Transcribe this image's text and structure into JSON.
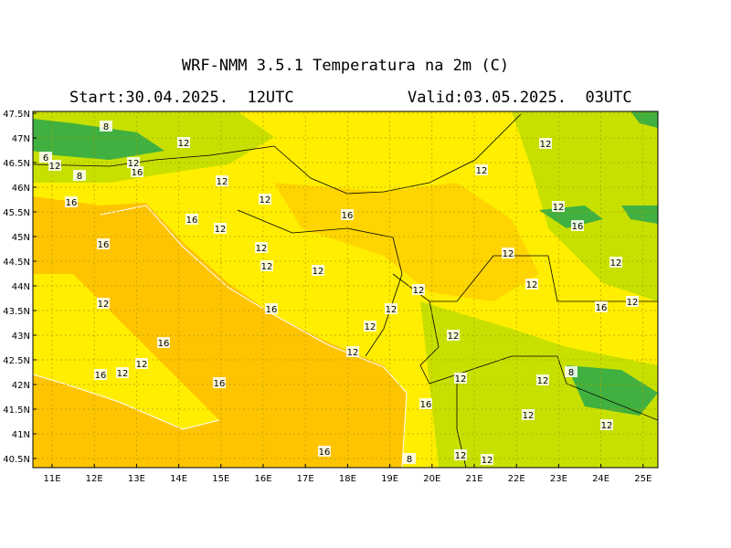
{
  "header": {
    "title": "WRF-NMM 3.5.1   Temperatura na 2m (C)",
    "start": "Start:30.04.2025.  12UTC",
    "valid": "Valid:03.05.2025.  03UTC"
  },
  "map": {
    "lat_ticks": [
      "47.5N",
      "47N",
      "46.5N",
      "46N",
      "45.5N",
      "45N",
      "44.5N",
      "44N",
      "43.5N",
      "43N",
      "42.5N",
      "42N",
      "41.5N",
      "41N",
      "40.5N"
    ],
    "lon_ticks": [
      "11E",
      "12E",
      "13E",
      "14E",
      "15E",
      "16E",
      "17E",
      "18E",
      "19E",
      "20E",
      "21E",
      "22E",
      "23E",
      "24E",
      "25E"
    ],
    "contour_labels": [
      "8",
      "12",
      "6",
      "12",
      "8",
      "16",
      "12",
      "12",
      "16",
      "12",
      "16",
      "12",
      "12",
      "12",
      "16",
      "16",
      "12",
      "12",
      "12",
      "12",
      "16",
      "12",
      "12",
      "12",
      "8",
      "12",
      "12",
      "16",
      "16",
      "16",
      "12",
      "16",
      "12",
      "12",
      "12",
      "12",
      "16",
      "12",
      "12",
      "12",
      "16",
      "12",
      "12",
      "8",
      "12",
      "12",
      "16",
      "12"
    ]
  }
}
